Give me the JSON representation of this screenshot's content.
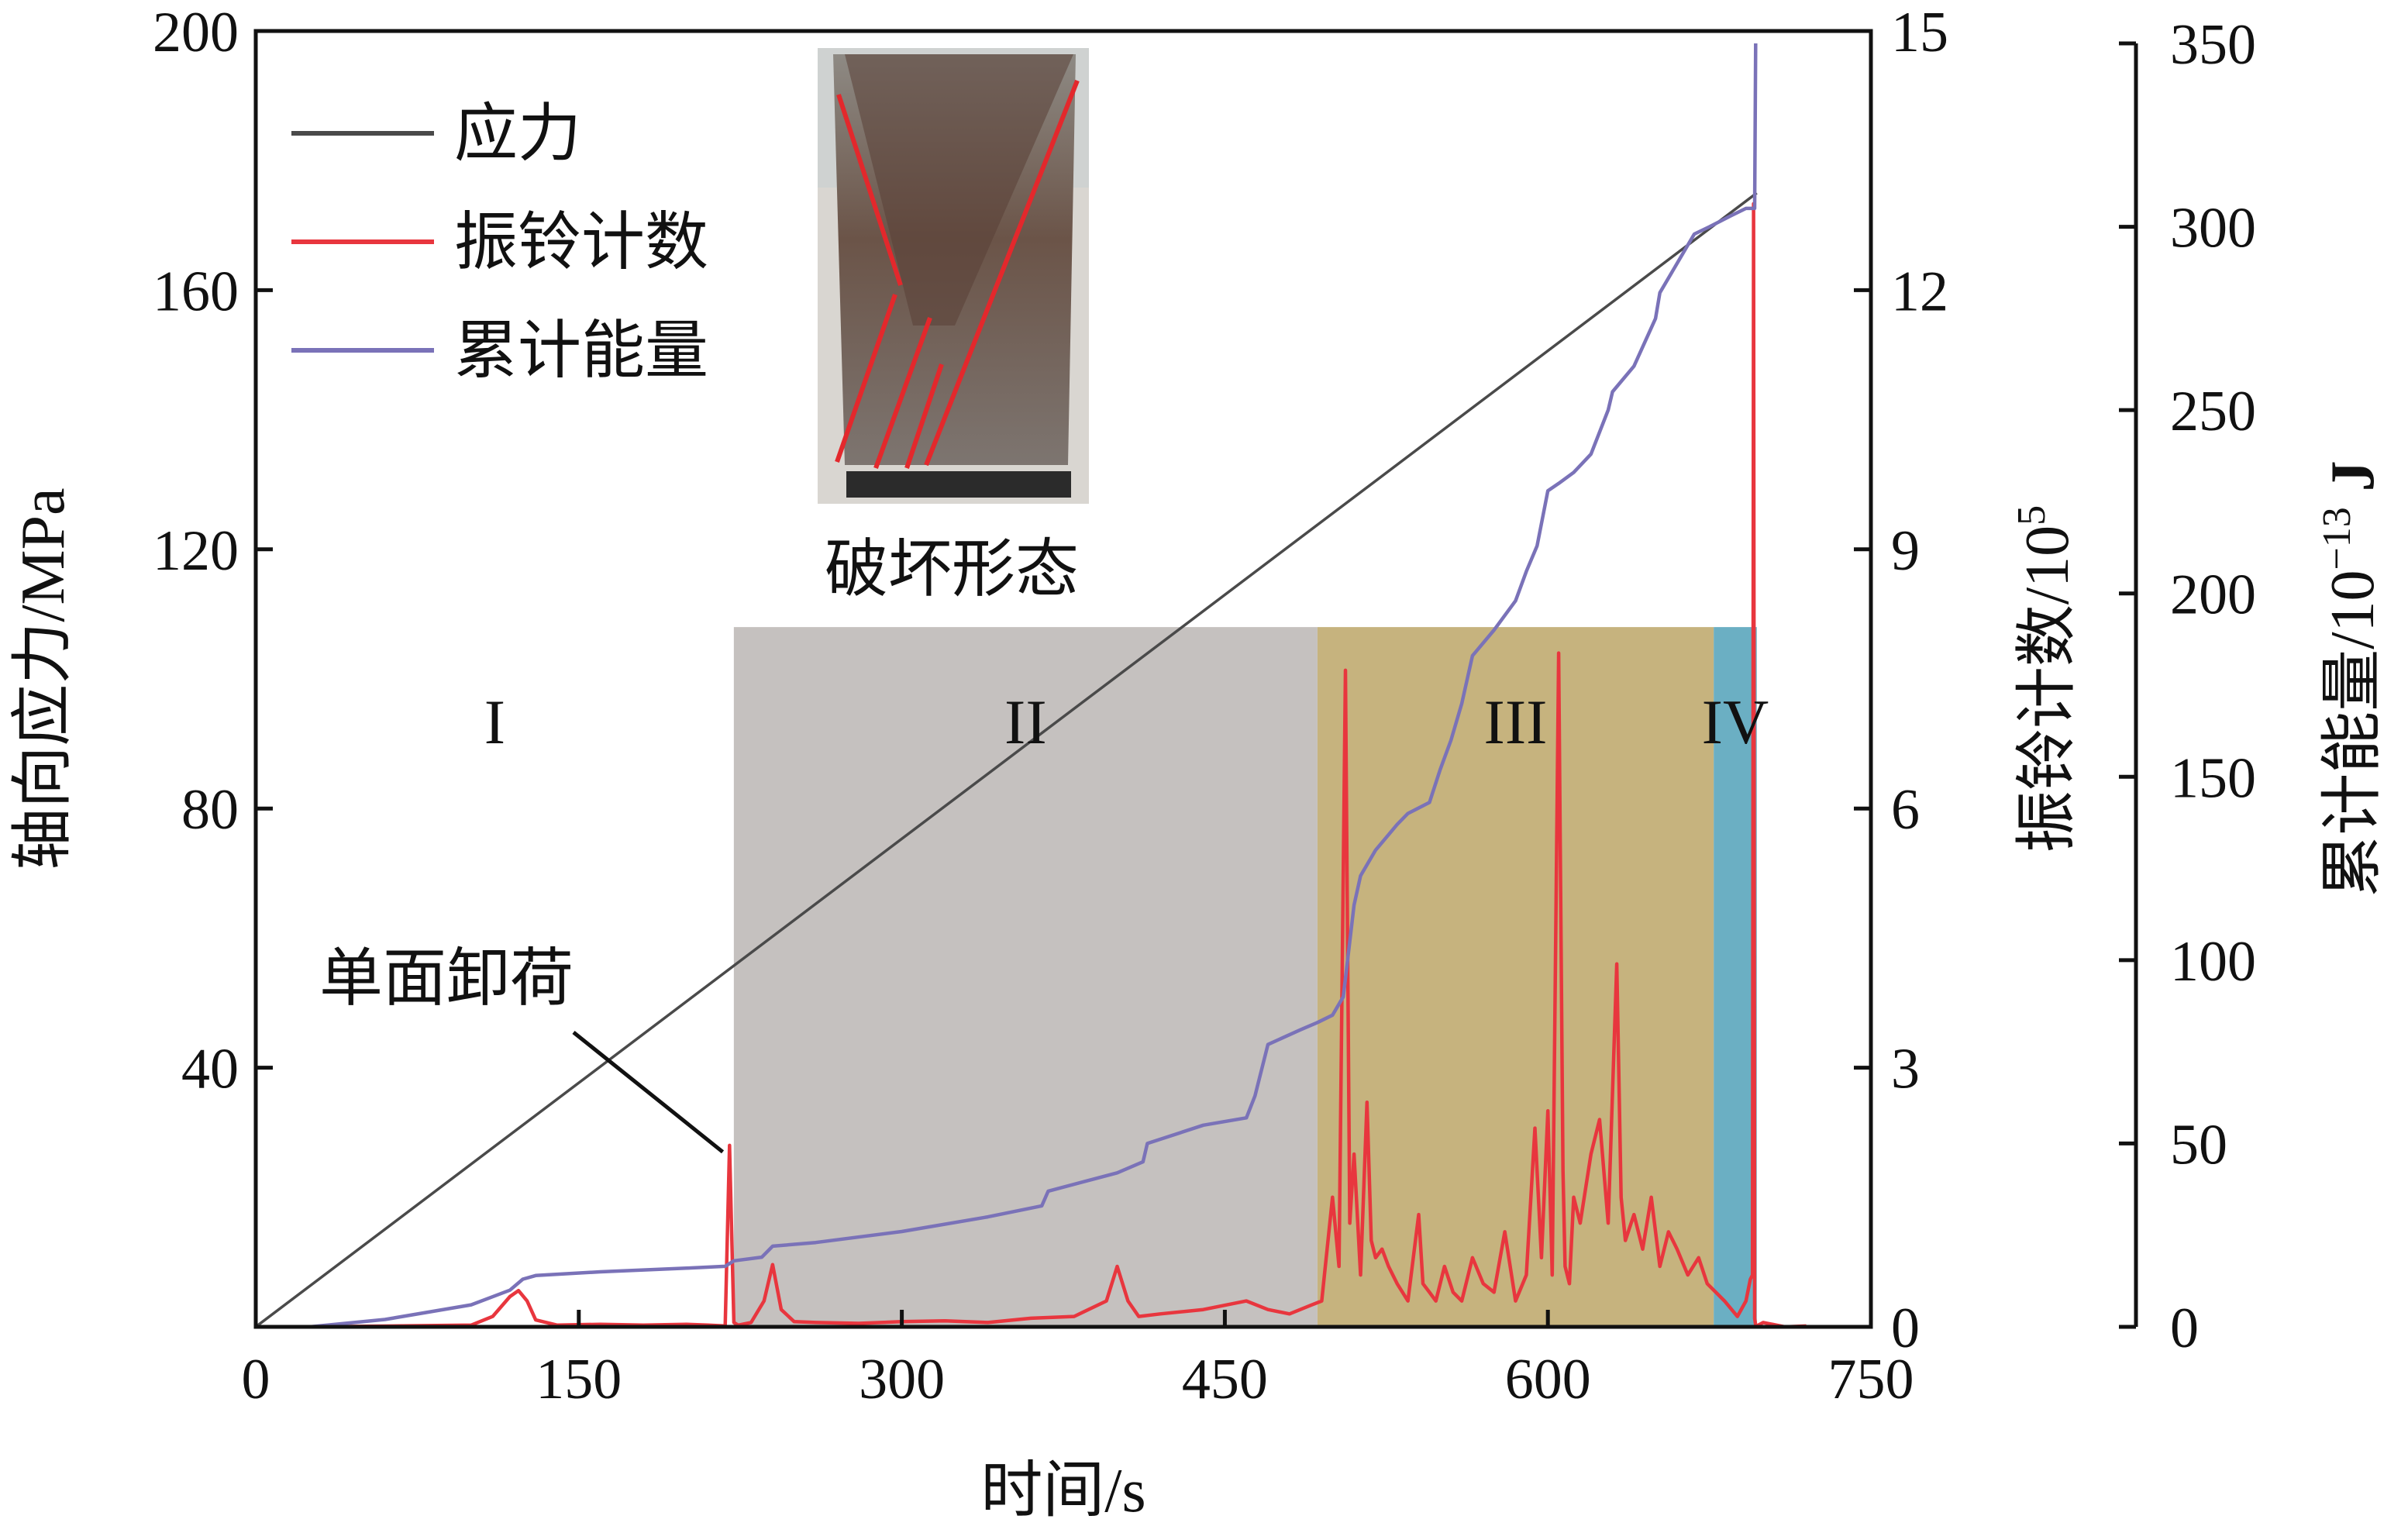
{
  "chart_data": {
    "type": "line",
    "title": "",
    "xlabel": "时间/s",
    "xlim": [
      0,
      750
    ],
    "x_ticks": [
      0,
      150,
      300,
      450,
      600,
      750
    ],
    "y_axes": [
      {
        "id": "stress",
        "label": "轴向应力/MPa",
        "lim": [
          0,
          200
        ],
        "ticks": [
          40,
          80,
          120,
          160,
          200
        ],
        "position": "left"
      },
      {
        "id": "ringdown",
        "label": "振铃计数/10",
        "label_sup": "5",
        "lim": [
          0,
          15
        ],
        "ticks": [
          0,
          3,
          6,
          9,
          12,
          15
        ],
        "position": "right"
      },
      {
        "id": "energy",
        "label": "累计能量/10",
        "label_sup": "−13",
        "label_tail": " J",
        "lim": [
          0,
          350
        ],
        "ticks": [
          0,
          50,
          100,
          150,
          200,
          250,
          300,
          350
        ],
        "position": "far-right"
      }
    ],
    "legend": {
      "placement": "top-left",
      "entries": [
        "应力",
        "振铃计数",
        "累计能量"
      ]
    },
    "series": [
      {
        "name": "应力",
        "axis": "stress",
        "color": "#4a4a4a",
        "x": [
          0,
          697
        ],
        "y": [
          0,
          175
        ]
      },
      {
        "name": "振铃计数",
        "axis": "ringdown",
        "color": "#e8363e",
        "x": [
          25,
          100,
          110,
          118,
          122,
          126,
          130,
          140,
          160,
          180,
          200,
          210,
          218,
          220,
          222,
          224,
          230,
          236,
          240,
          244,
          250,
          260,
          280,
          300,
          320,
          340,
          360,
          380,
          395,
          400,
          405,
          410,
          420,
          440,
          460,
          470,
          480,
          490,
          495,
          500,
          503,
          506,
          508,
          510,
          513,
          516,
          518,
          520,
          523,
          526,
          530,
          535,
          540,
          542,
          545,
          548,
          552,
          556,
          560,
          565,
          570,
          575,
          580,
          585,
          590,
          594,
          597,
          600,
          602,
          605,
          607,
          608,
          610,
          612,
          615,
          620,
          624,
          628,
          632,
          634,
          636,
          640,
          644,
          648,
          652,
          656,
          660,
          665,
          670,
          674,
          678,
          682,
          688,
          692,
          694,
          695,
          695.5,
          696,
          696.5,
          697,
          700,
          710,
          720
        ],
        "y": [
          0,
          0.02,
          0.12,
          0.35,
          0.42,
          0.3,
          0.08,
          0.02,
          0.03,
          0.02,
          0.03,
          0.02,
          0.01,
          2.1,
          0.05,
          0.02,
          0.05,
          0.3,
          0.72,
          0.2,
          0.06,
          0.05,
          0.04,
          0.06,
          0.07,
          0.05,
          0.1,
          0.12,
          0.3,
          0.7,
          0.3,
          0.12,
          0.15,
          0.2,
          0.3,
          0.2,
          0.15,
          0.25,
          0.3,
          1.5,
          0.7,
          7.6,
          1.2,
          2.0,
          0.6,
          2.6,
          1.0,
          0.8,
          0.9,
          0.7,
          0.5,
          0.3,
          1.3,
          0.5,
          0.4,
          0.3,
          0.7,
          0.4,
          0.3,
          0.8,
          0.5,
          0.4,
          1.1,
          0.3,
          0.6,
          2.3,
          0.8,
          2.5,
          0.6,
          7.8,
          1.8,
          0.7,
          0.5,
          1.5,
          1.2,
          2.0,
          2.4,
          1.2,
          4.2,
          1.5,
          1.0,
          1.3,
          0.9,
          1.5,
          0.7,
          1.1,
          0.9,
          0.6,
          0.8,
          0.5,
          0.4,
          0.3,
          0.12,
          0.3,
          0.55,
          0.6,
          13.0,
          0.1,
          0.02,
          0.01,
          0.05,
          0.0,
          0.01
        ]
      },
      {
        "name": "累计能量",
        "axis": "energy",
        "color": "#7a72b8",
        "x": [
          25,
          60,
          100,
          118,
          124,
          130,
          160,
          200,
          218,
          222,
          235,
          240,
          260,
          300,
          340,
          365,
          368,
          400,
          412,
          414,
          440,
          460,
          464,
          470,
          485,
          493,
          500,
          505,
          510,
          513,
          520,
          530,
          535,
          545,
          550,
          555,
          560,
          565,
          575,
          585,
          590,
          595,
          600,
          605,
          612,
          620,
          628,
          630,
          640,
          650,
          652,
          660,
          668,
          675,
          685,
          692,
          696,
          696.5
        ],
        "y": [
          0,
          2,
          6,
          10,
          13,
          14,
          15,
          16,
          16.5,
          18,
          19,
          22,
          23,
          26,
          30,
          33,
          37,
          42,
          45,
          50,
          55,
          57,
          63,
          77,
          81,
          83,
          85,
          90,
          115,
          123,
          130,
          137,
          140,
          143,
          152,
          160,
          170,
          183,
          190,
          198,
          206,
          213,
          228,
          230,
          233,
          238,
          250,
          255,
          262,
          275,
          282,
          290,
          298,
          300,
          303,
          305,
          305,
          350
        ]
      }
    ],
    "stages": [
      {
        "label": "I",
        "x_start": 0,
        "x_end": 222,
        "color": ""
      },
      {
        "label": "II",
        "x_start": 222,
        "x_end": 493,
        "color": "#c5c1bf"
      },
      {
        "label": "III",
        "x_start": 493,
        "x_end": 677,
        "color": "#c6b37e"
      },
      {
        "label": "IV",
        "x_start": 677,
        "x_end": 697,
        "color": "#6bafc3"
      }
    ],
    "stage_band_top": 108,
    "inset": {
      "caption": "破坏形态"
    },
    "annotations": [
      {
        "text": "单面卸荷",
        "target_x": 219,
        "target_y": 27
      }
    ]
  }
}
